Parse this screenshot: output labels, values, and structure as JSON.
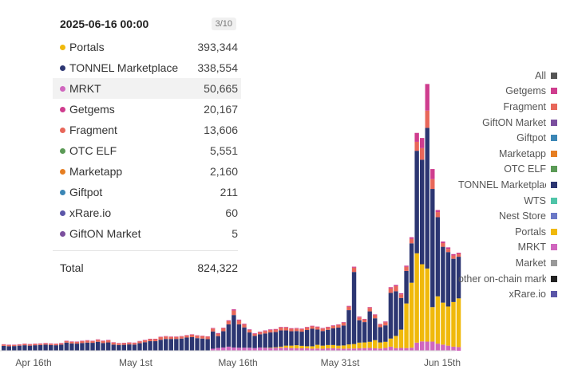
{
  "tooltip": {
    "date": "2025-06-16 00:00",
    "page": "3/10",
    "rows": [
      {
        "name": "Portals",
        "value": "393,344",
        "color": "#f0b90b"
      },
      {
        "name": "TONNEL Marketplace",
        "value": "338,554",
        "color": "#2c3672"
      },
      {
        "name": "MRKT",
        "value": "50,665",
        "color": "#d066be"
      },
      {
        "name": "Getgems",
        "value": "20,167",
        "color": "#cf3d8e"
      },
      {
        "name": "Fragment",
        "value": "13,606",
        "color": "#e8675a"
      },
      {
        "name": "OTC ELF",
        "value": "5,551",
        "color": "#5b9a56"
      },
      {
        "name": "Marketapp",
        "value": "2,160",
        "color": "#e67e22"
      },
      {
        "name": "Giftpot",
        "value": "211",
        "color": "#3b86b5"
      },
      {
        "name": "xRare.io",
        "value": "60",
        "color": "#5b56a8"
      },
      {
        "name": "GiftON Market",
        "value": "5",
        "color": "#7b4f9e"
      }
    ],
    "total_label": "Total",
    "total_value": "824,322"
  },
  "legend": [
    {
      "label": "All",
      "color": "#555555"
    },
    {
      "label": "Getgems",
      "color": "#cf3d8e"
    },
    {
      "label": "Fragment",
      "color": "#e8675a"
    },
    {
      "label": "GiftON Market",
      "color": "#7b4f9e"
    },
    {
      "label": "Giftpot",
      "color": "#3b86b5"
    },
    {
      "label": "Marketapp",
      "color": "#e67e22"
    },
    {
      "label": "OTC ELF",
      "color": "#5b9a56"
    },
    {
      "label": "TONNEL Marketplace",
      "color": "#2c3672"
    },
    {
      "label": "WTS",
      "color": "#4fc4a8"
    },
    {
      "label": "Nest Store",
      "color": "#6b79c7"
    },
    {
      "label": "Portals",
      "color": "#f0b90b"
    },
    {
      "label": "MRKT",
      "color": "#d066be"
    },
    {
      "label": "Market",
      "color": "#999999"
    },
    {
      "label": "other on-chain markets",
      "color": "#222222"
    },
    {
      "label": "xRare.io",
      "color": "#5b56a8"
    }
  ],
  "chart_data": {
    "type": "bar",
    "stacked": true,
    "x_tick_labels": [
      "Apr 16th",
      "May 1st",
      "May 16th",
      "May 31st",
      "Jun 15th"
    ],
    "ylim": [
      0,
      1500000
    ],
    "series_order": [
      "MRKT",
      "Portals",
      "TONNEL Marketplace",
      "Fragment",
      "Getgems"
    ],
    "colors": {
      "MRKT": "#d066be",
      "Portals": "#f0b90b",
      "TONNEL Marketplace": "#2c3672",
      "Fragment": "#e8675a",
      "Getgems": "#cf3d8e"
    },
    "series_values": {
      "MRKT": [
        0,
        0,
        0,
        0,
        0,
        0,
        0,
        0,
        0,
        0,
        0,
        0,
        0,
        0,
        0,
        0,
        0,
        0,
        0,
        0,
        0,
        0,
        0,
        0,
        0,
        0,
        0,
        0,
        0,
        0,
        0,
        0,
        0,
        0,
        0,
        0,
        0,
        0,
        0,
        0,
        10000,
        14000,
        16000,
        20000,
        16000,
        15000,
        15000,
        15000,
        13000,
        16000,
        14000,
        13000,
        14000,
        15000,
        15000,
        13000,
        12000,
        12000,
        12000,
        10000,
        11000,
        10000,
        12000,
        12000,
        11000,
        10000,
        11000,
        11000,
        12000,
        13000,
        14000,
        12000,
        11000,
        14000,
        20000,
        13000,
        14000,
        13000,
        15000,
        40000,
        46000,
        45000,
        45000,
        35000,
        30000,
        25000,
        20000,
        18000
      ],
      "Portals": [
        0,
        0,
        0,
        0,
        0,
        0,
        0,
        0,
        0,
        0,
        0,
        0,
        0,
        0,
        0,
        0,
        0,
        0,
        0,
        0,
        0,
        0,
        0,
        0,
        0,
        0,
        0,
        0,
        0,
        0,
        0,
        0,
        0,
        0,
        0,
        0,
        0,
        0,
        0,
        0,
        0,
        0,
        0,
        0,
        0,
        0,
        0,
        0,
        0,
        0,
        1000,
        2000,
        3000,
        5000,
        10000,
        12000,
        15000,
        12000,
        10000,
        12000,
        18000,
        15000,
        16000,
        16000,
        14000,
        16000,
        20000,
        22000,
        28000,
        28000,
        30000,
        40000,
        30000,
        30000,
        40000,
        60000,
        90000,
        220000,
        320000,
        440000,
        380000,
        360000,
        170000,
        233000,
        207000,
        193000,
        220000,
        240000
      ],
      "TONNEL Marketplace": [
        24000,
        22000,
        23000,
        25000,
        27000,
        25000,
        27000,
        28000,
        30000,
        28000,
        27000,
        30000,
        40000,
        36000,
        35000,
        38000,
        40000,
        39000,
        44000,
        38000,
        41000,
        30000,
        28000,
        29000,
        31000,
        30000,
        37000,
        42000,
        47000,
        47000,
        54000,
        58000,
        58000,
        58000,
        60000,
        65000,
        67000,
        62000,
        60000,
        57000,
        85000,
        58000,
        80000,
        110000,
        160000,
        115000,
        100000,
        75000,
        60000,
        65000,
        70000,
        75000,
        75000,
        80000,
        75000,
        71000,
        70000,
        70000,
        80000,
        86000,
        75000,
        72000,
        75000,
        82000,
        89000,
        98000,
        169000,
        355000,
        110000,
        100000,
        150000,
        108000,
        75000,
        81000,
        225000,
        220000,
        156000,
        160000,
        194000,
        505000,
        515000,
        693000,
        582000,
        390000,
        275000,
        268000,
        213000,
        205000
      ],
      "Fragment": [
        6000,
        6000,
        5000,
        5000,
        6000,
        6000,
        6000,
        6000,
        6000,
        6000,
        6000,
        6000,
        7000,
        8000,
        8000,
        9000,
        10000,
        8000,
        10000,
        10000,
        10000,
        10000,
        8000,
        8000,
        8000,
        8000,
        9000,
        9000,
        10000,
        10000,
        13000,
        12000,
        10000,
        10000,
        10000,
        10000,
        12000,
        12000,
        12000,
        12000,
        14000,
        12000,
        14000,
        16000,
        22000,
        18000,
        14000,
        12000,
        10000,
        10000,
        12000,
        12000,
        12000,
        14000,
        14000,
        12000,
        12000,
        12000,
        12000,
        12000,
        12000,
        12000,
        12000,
        12000,
        13000,
        14000,
        17000,
        21000,
        14000,
        13000,
        17000,
        15000,
        13000,
        15000,
        22000,
        25000,
        18000,
        20000,
        22000,
        44000,
        57000,
        85000,
        48000,
        25000,
        18000,
        16000,
        16000,
        14000
      ],
      "Getgems": [
        2000,
        2000,
        2000,
        2000,
        2000,
        2000,
        2000,
        2000,
        2000,
        2000,
        2000,
        2000,
        2000,
        2000,
        2000,
        2000,
        2000,
        2000,
        2000,
        2000,
        2000,
        2000,
        2000,
        2000,
        2000,
        2000,
        2000,
        2000,
        2000,
        2000,
        2000,
        2000,
        2000,
        2000,
        2000,
        2000,
        2000,
        2000,
        2000,
        2000,
        3000,
        3000,
        3000,
        4000,
        6000,
        5000,
        4000,
        3000,
        3000,
        3000,
        3000,
        3000,
        3000,
        3000,
        3000,
        3000,
        3000,
        3000,
        3000,
        3000,
        3000,
        3000,
        3000,
        3000,
        3000,
        3000,
        4000,
        5000,
        4000,
        3000,
        4000,
        4000,
        3000,
        4000,
        6000,
        6000,
        5000,
        6000,
        8000,
        44000,
        50000,
        131000,
        50000,
        10000,
        8000,
        7000,
        7000,
        6000
      ]
    }
  }
}
